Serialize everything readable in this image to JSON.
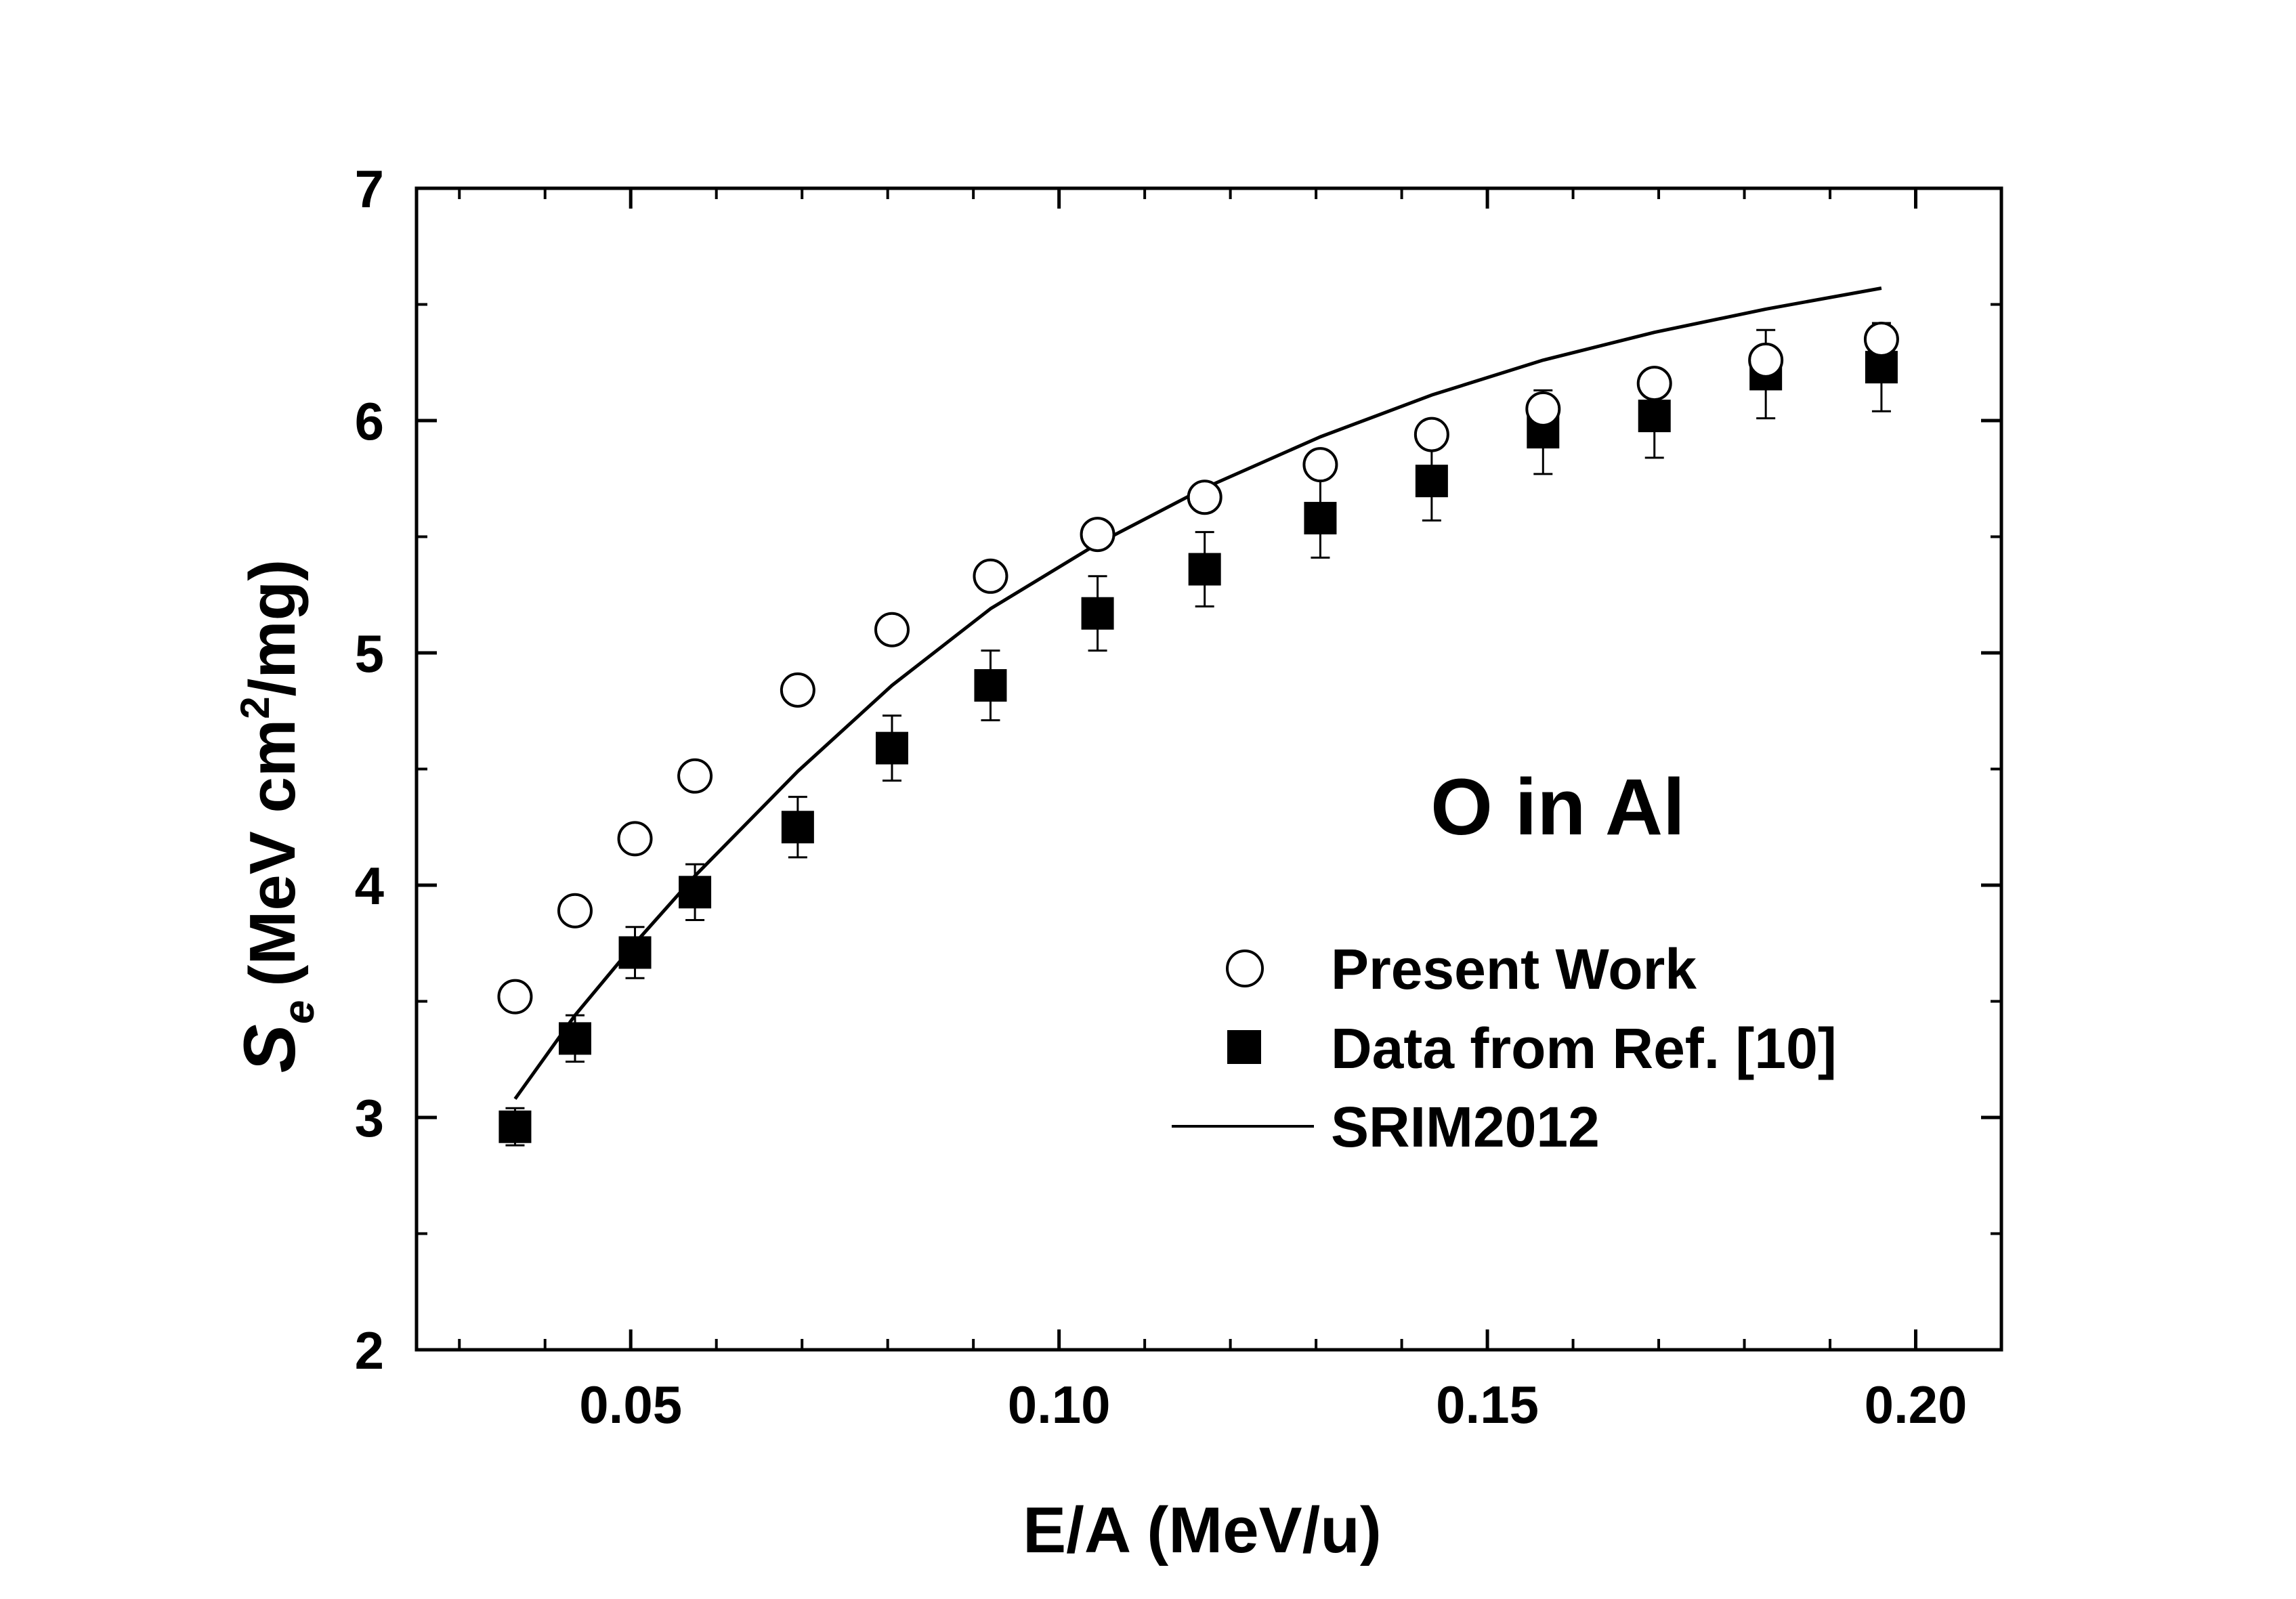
{
  "chart_data": {
    "type": "scatter",
    "annotation": "O in Al",
    "xlabel": "E/A (MeV/u)",
    "ylabel": {
      "symbol": "S",
      "subscript": "e",
      "units_pre": "(MeV cm",
      "superscript": "2",
      "units_post": "/mg)"
    },
    "xlim": [
      0.025,
      0.21
    ],
    "ylim": [
      2,
      7
    ],
    "x_major_ticks": [
      0.05,
      0.1,
      0.15,
      0.2
    ],
    "x_tick_labels": [
      "0.05",
      "0.10",
      "0.15",
      "0.20"
    ],
    "x_minor_ticks": [
      0.03,
      0.04,
      0.06,
      0.07,
      0.08,
      0.09,
      0.11,
      0.12,
      0.13,
      0.14,
      0.16,
      0.17,
      0.18,
      0.19
    ],
    "y_major_ticks": [
      2,
      3,
      4,
      5,
      6,
      7
    ],
    "y_tick_labels": [
      "2",
      "3",
      "4",
      "5",
      "6",
      "7"
    ],
    "y_minor_ticks": [
      2.5,
      3.5,
      4.5,
      5.5,
      6.5
    ],
    "grid": false,
    "legend_position": "lower-right",
    "series": [
      {
        "name": "Present Work",
        "marker": "open-circle",
        "color": "#000000",
        "x": [
          0.0365,
          0.0435,
          0.0505,
          0.0575,
          0.0695,
          0.0805,
          0.092,
          0.1045,
          0.117,
          0.1305,
          0.1435,
          0.1565,
          0.1695,
          0.1825,
          0.196
        ],
        "y": [
          3.52,
          3.89,
          4.2,
          4.47,
          4.84,
          5.1,
          5.33,
          5.51,
          5.67,
          5.81,
          5.94,
          6.05,
          6.16,
          6.26,
          6.35
        ]
      },
      {
        "name": "Data from Ref. [10]",
        "marker": "filled-square",
        "color": "#000000",
        "x": [
          0.0365,
          0.0435,
          0.0505,
          0.0575,
          0.0695,
          0.0805,
          0.092,
          0.1045,
          0.117,
          0.1305,
          0.1435,
          0.1565,
          0.1695,
          0.1825,
          0.196
        ],
        "y": [
          2.96,
          3.34,
          3.71,
          3.97,
          4.25,
          4.59,
          4.86,
          5.17,
          5.36,
          5.58,
          5.74,
          5.95,
          6.02,
          6.2,
          6.23
        ],
        "yerr": [
          0.08,
          0.1,
          0.11,
          0.12,
          0.13,
          0.14,
          0.15,
          0.16,
          0.16,
          0.17,
          0.17,
          0.18,
          0.18,
          0.19,
          0.19
        ]
      },
      {
        "name": "SRIM2012",
        "marker": "line",
        "color": "#000000",
        "x": [
          0.0365,
          0.0435,
          0.0505,
          0.0575,
          0.0695,
          0.0805,
          0.092,
          0.1045,
          0.117,
          0.1305,
          0.1435,
          0.1565,
          0.1695,
          0.1825,
          0.196
        ],
        "y": [
          3.08,
          3.44,
          3.75,
          4.04,
          4.49,
          4.86,
          5.19,
          5.47,
          5.71,
          5.93,
          6.11,
          6.26,
          6.38,
          6.48,
          6.57
        ]
      }
    ]
  }
}
